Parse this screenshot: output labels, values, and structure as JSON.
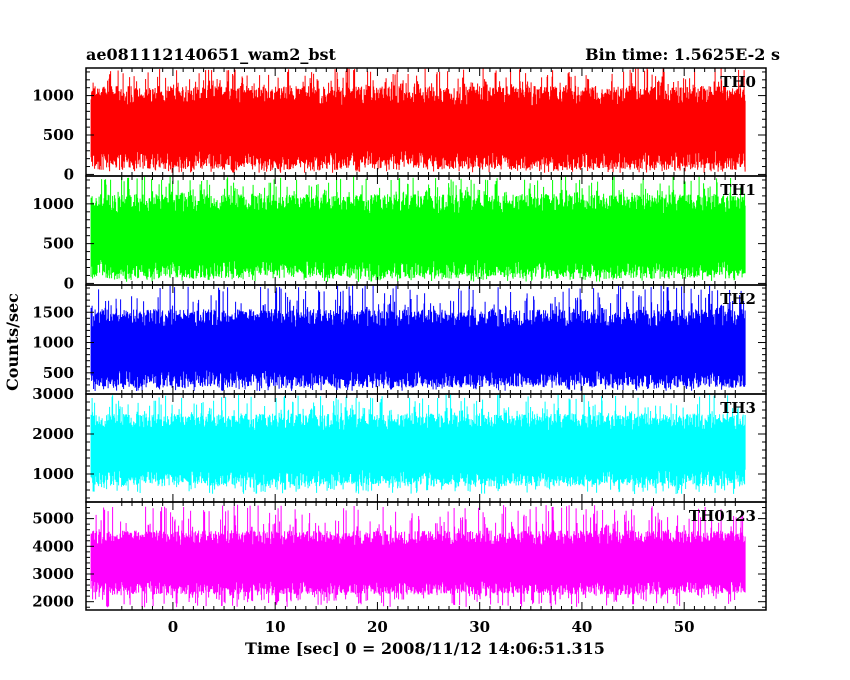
{
  "chart_data": {
    "type": "line",
    "title": "ae081112140651_wam2_bst",
    "subtitle": "Bin time: 1.5625E-2 s",
    "xlabel": "Time [sec] 0 = 2008/11/12 14:06:51.315",
    "ylabel": "Counts/sec",
    "xlim": [
      -8.5,
      58
    ],
    "x_ticks": [
      0,
      10,
      20,
      30,
      40,
      50
    ],
    "x_tick_labels": [
      "0",
      "10",
      "20",
      "30",
      "40",
      "50"
    ],
    "data_x_range": [
      -8,
      56
    ],
    "grid": false,
    "panels": [
      {
        "name": "TH0",
        "color": "#ff0000",
        "ylim": [
          -20,
          1350
        ],
        "y_ticks": [
          0,
          500,
          1000
        ],
        "y_tick_labels": [
          "0",
          "500",
          "1000"
        ],
        "typical_range": [
          180,
          1000
        ],
        "extreme_range": [
          20,
          1350
        ]
      },
      {
        "name": "TH1",
        "color": "#00ff00",
        "ylim": [
          -20,
          1350
        ],
        "y_ticks": [
          0,
          500,
          1000
        ],
        "y_tick_labels": [
          "0",
          "500",
          "1000"
        ],
        "typical_range": [
          180,
          1000
        ],
        "extreme_range": [
          20,
          1350
        ]
      },
      {
        "name": "TH2",
        "color": "#0000ff",
        "ylim": [
          150,
          1950
        ],
        "y_ticks": [
          500,
          1000,
          1500
        ],
        "y_tick_labels": [
          "500",
          "1000",
          "1500"
        ],
        "typical_range": [
          400,
          1400
        ],
        "extreme_range": [
          200,
          1950
        ]
      },
      {
        "name": "TH3",
        "color": "#00ffff",
        "ylim": [
          300,
          3000
        ],
        "y_ticks": [
          1000,
          2000,
          3000
        ],
        "y_tick_labels": [
          "1000",
          "2000",
          "3000"
        ],
        "typical_range": [
          900,
          2300
        ],
        "extreme_range": [
          500,
          3000
        ]
      },
      {
        "name": "TH0123",
        "color": "#ff00ff",
        "ylim": [
          1700,
          5600
        ],
        "y_ticks": [
          2000,
          3000,
          4000,
          5000
        ],
        "y_tick_labels": [
          "2000",
          "3000",
          "4000",
          "5000"
        ],
        "typical_range": [
          2500,
          4300
        ],
        "extreme_range": [
          1800,
          5500
        ]
      }
    ]
  }
}
